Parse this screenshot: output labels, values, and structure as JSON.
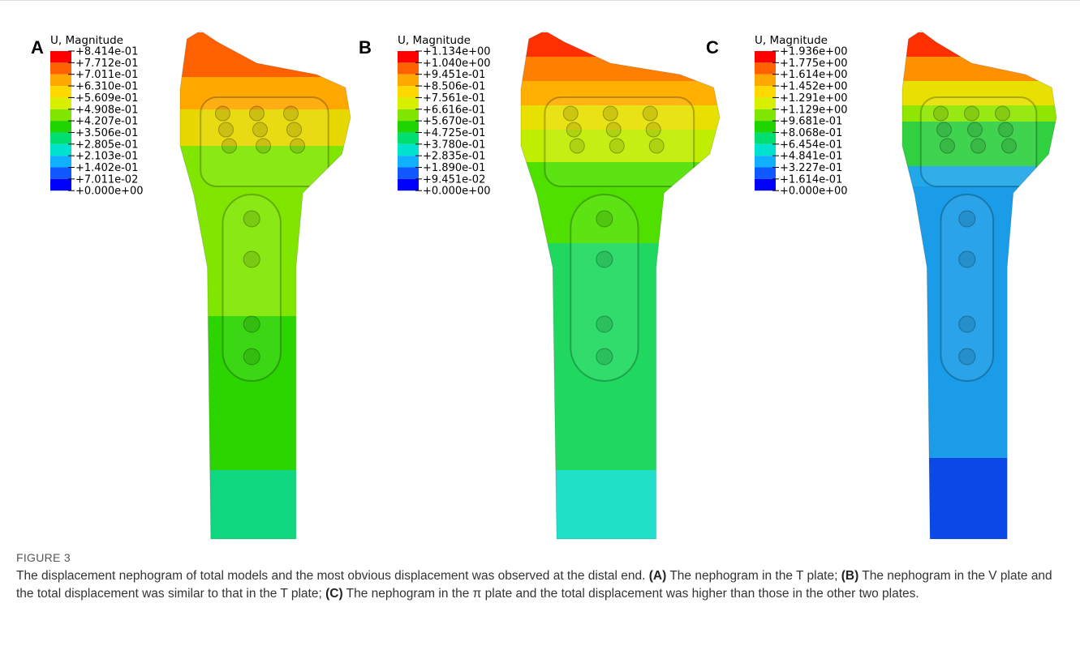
{
  "figure": {
    "panels": [
      {
        "letter": "A",
        "legend_title": "U, Magnitude",
        "legend_labels": [
          "+8.414e-01",
          "+7.712e-01",
          "+7.011e-01",
          "+6.310e-01",
          "+5.609e-01",
          "+4.908e-01",
          "+4.207e-01",
          "+3.506e-01",
          "+2.805e-01",
          "+2.103e-01",
          "+1.402e-01",
          "+7.011e-02",
          "+0.000e+00"
        ]
      },
      {
        "letter": "B",
        "legend_title": "U, Magnitude",
        "legend_labels": [
          "+1.134e+00",
          "+1.040e+00",
          "+9.451e-01",
          "+8.506e-01",
          "+7.561e-01",
          "+6.616e-01",
          "+5.670e-01",
          "+4.725e-01",
          "+3.780e-01",
          "+2.835e-01",
          "+1.890e-01",
          "+9.451e-02",
          "+0.000e+00"
        ]
      },
      {
        "letter": "C",
        "legend_title": "U, Magnitude",
        "legend_labels": [
          "+1.936e+00",
          "+1.775e+00",
          "+1.614e+00",
          "+1.452e+00",
          "+1.291e+00",
          "+1.129e+00",
          "+9.681e-01",
          "+8.068e-01",
          "+6.454e-01",
          "+4.841e-01",
          "+3.227e-01",
          "+1.614e-01",
          "+0.000e+00"
        ]
      }
    ],
    "caption": {
      "label": "FIGURE 3",
      "intro": "The displacement nephogram of total models and the most obvious displacement was observed at the distal end. ",
      "items": [
        {
          "tag": "(A)",
          "text": " The nephogram in the T plate; "
        },
        {
          "tag": "(B)",
          "text": " The nephogram in the V plate and the total displacement was similar to that in the T plate; "
        },
        {
          "tag": "(C)",
          "text": " The nephogram in the π plate and the total displacement was higher than those in the other two plates."
        }
      ]
    }
  }
}
